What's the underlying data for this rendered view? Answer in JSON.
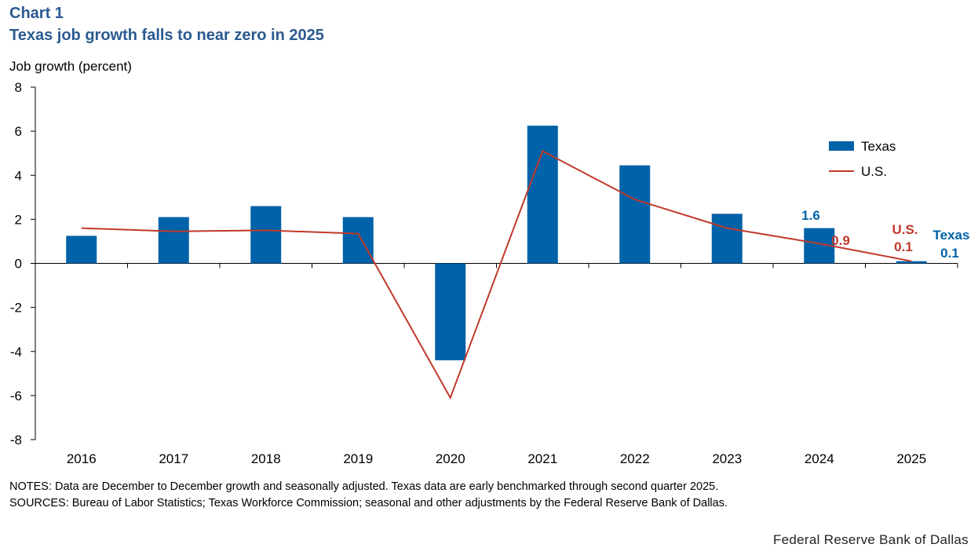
{
  "header": {
    "chart_number": "Chart 1",
    "title": "Texas job growth falls to near zero in 2025"
  },
  "colors": {
    "texas": "#0062a8",
    "us": "#c0392b",
    "title": "#2b5a91"
  },
  "chart_data": {
    "type": "bar",
    "title": "Texas job growth falls to near zero in 2025",
    "ylabel": "Job growth (percent)",
    "xlabel": "",
    "ylim": [
      -8,
      8
    ],
    "yticks": [
      "8",
      "6",
      "4",
      "2",
      "0",
      "-2",
      "-4",
      "-6",
      "-8"
    ],
    "categories": [
      "2016",
      "2017",
      "2018",
      "2019",
      "2020",
      "2021",
      "2022",
      "2023",
      "2024",
      "2025"
    ],
    "series": [
      {
        "name": "Texas",
        "kind": "bar",
        "values": [
          1.25,
          2.1,
          2.6,
          2.1,
          -4.4,
          6.25,
          4.45,
          2.25,
          1.6,
          0.1
        ]
      },
      {
        "name": "U.S.",
        "kind": "line",
        "values": [
          1.6,
          1.45,
          1.5,
          1.35,
          -6.1,
          5.1,
          2.9,
          1.6,
          0.9,
          0.1
        ]
      }
    ],
    "legend": {
      "position": "top-right",
      "entries": [
        "Texas",
        "U.S."
      ]
    },
    "annotations": {
      "texas_2024": "1.6",
      "us_2024": "0.9",
      "us_2025_name": "U.S.",
      "us_2025_value": "0.1",
      "texas_2025_name": "Texas",
      "texas_2025_value": "0.1"
    }
  },
  "footer": {
    "notes": "NOTES: Data are December to December growth and seasonally adjusted. Texas data are early benchmarked through second quarter 2025.",
    "sources": "SOURCES: Bureau of Labor Statistics; Texas Workforce Commission; seasonal and other adjustments by the Federal Reserve Bank of Dallas.",
    "credit": "Federal Reserve Bank of Dallas"
  }
}
